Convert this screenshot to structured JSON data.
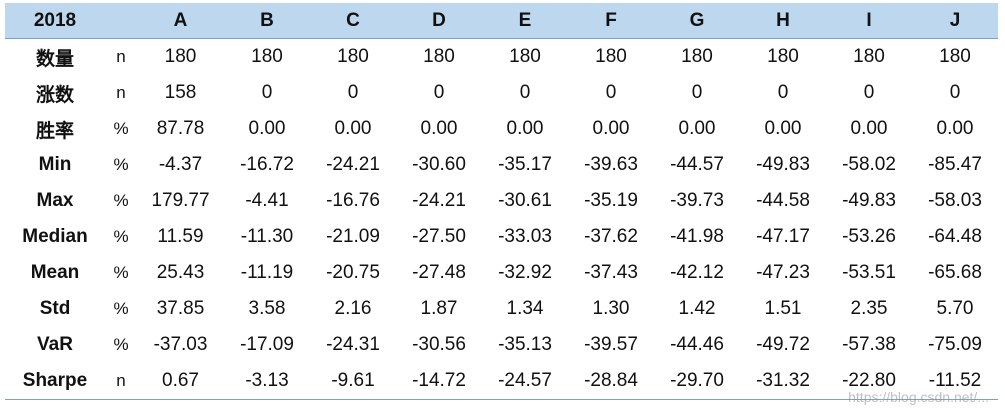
{
  "table": {
    "year": "2018",
    "columns": [
      "A",
      "B",
      "C",
      "D",
      "E",
      "F",
      "G",
      "H",
      "I",
      "J"
    ],
    "rows": [
      {
        "label": "数量",
        "unit": "n",
        "values": [
          "180",
          "180",
          "180",
          "180",
          "180",
          "180",
          "180",
          "180",
          "180",
          "180"
        ]
      },
      {
        "label": "涨数",
        "unit": "n",
        "values": [
          "158",
          "0",
          "0",
          "0",
          "0",
          "0",
          "0",
          "0",
          "0",
          "0"
        ]
      },
      {
        "label": "胜率",
        "unit": "%",
        "values": [
          "87.78",
          "0.00",
          "0.00",
          "0.00",
          "0.00",
          "0.00",
          "0.00",
          "0.00",
          "0.00",
          "0.00"
        ]
      },
      {
        "label": "Min",
        "unit": "%",
        "values": [
          "-4.37",
          "-16.72",
          "-24.21",
          "-30.60",
          "-35.17",
          "-39.63",
          "-44.57",
          "-49.83",
          "-58.02",
          "-85.47"
        ]
      },
      {
        "label": "Max",
        "unit": "%",
        "values": [
          "179.77",
          "-4.41",
          "-16.76",
          "-24.21",
          "-30.61",
          "-35.19",
          "-39.73",
          "-44.58",
          "-49.83",
          "-58.03"
        ]
      },
      {
        "label": "Median",
        "unit": "%",
        "values": [
          "11.59",
          "-11.30",
          "-21.09",
          "-27.50",
          "-33.03",
          "-37.62",
          "-41.98",
          "-47.17",
          "-53.26",
          "-64.48"
        ]
      },
      {
        "label": "Mean",
        "unit": "%",
        "values": [
          "25.43",
          "-11.19",
          "-20.75",
          "-27.48",
          "-32.92",
          "-37.43",
          "-42.12",
          "-47.23",
          "-53.51",
          "-65.68"
        ]
      },
      {
        "label": "Std",
        "unit": "%",
        "values": [
          "37.85",
          "3.58",
          "2.16",
          "1.87",
          "1.34",
          "1.30",
          "1.42",
          "1.51",
          "2.35",
          "5.70"
        ]
      },
      {
        "label": "VaR",
        "unit": "%",
        "values": [
          "-37.03",
          "-17.09",
          "-24.31",
          "-30.56",
          "-35.13",
          "-39.57",
          "-44.46",
          "-49.72",
          "-57.38",
          "-75.09"
        ]
      },
      {
        "label": "Sharpe",
        "unit": "n",
        "values": [
          "0.67",
          "-3.13",
          "-9.61",
          "-14.72",
          "-24.57",
          "-28.84",
          "-29.70",
          "-31.32",
          "-22.80",
          "-11.52"
        ]
      }
    ]
  },
  "watermark": "https://blog.csdn.net/..."
}
